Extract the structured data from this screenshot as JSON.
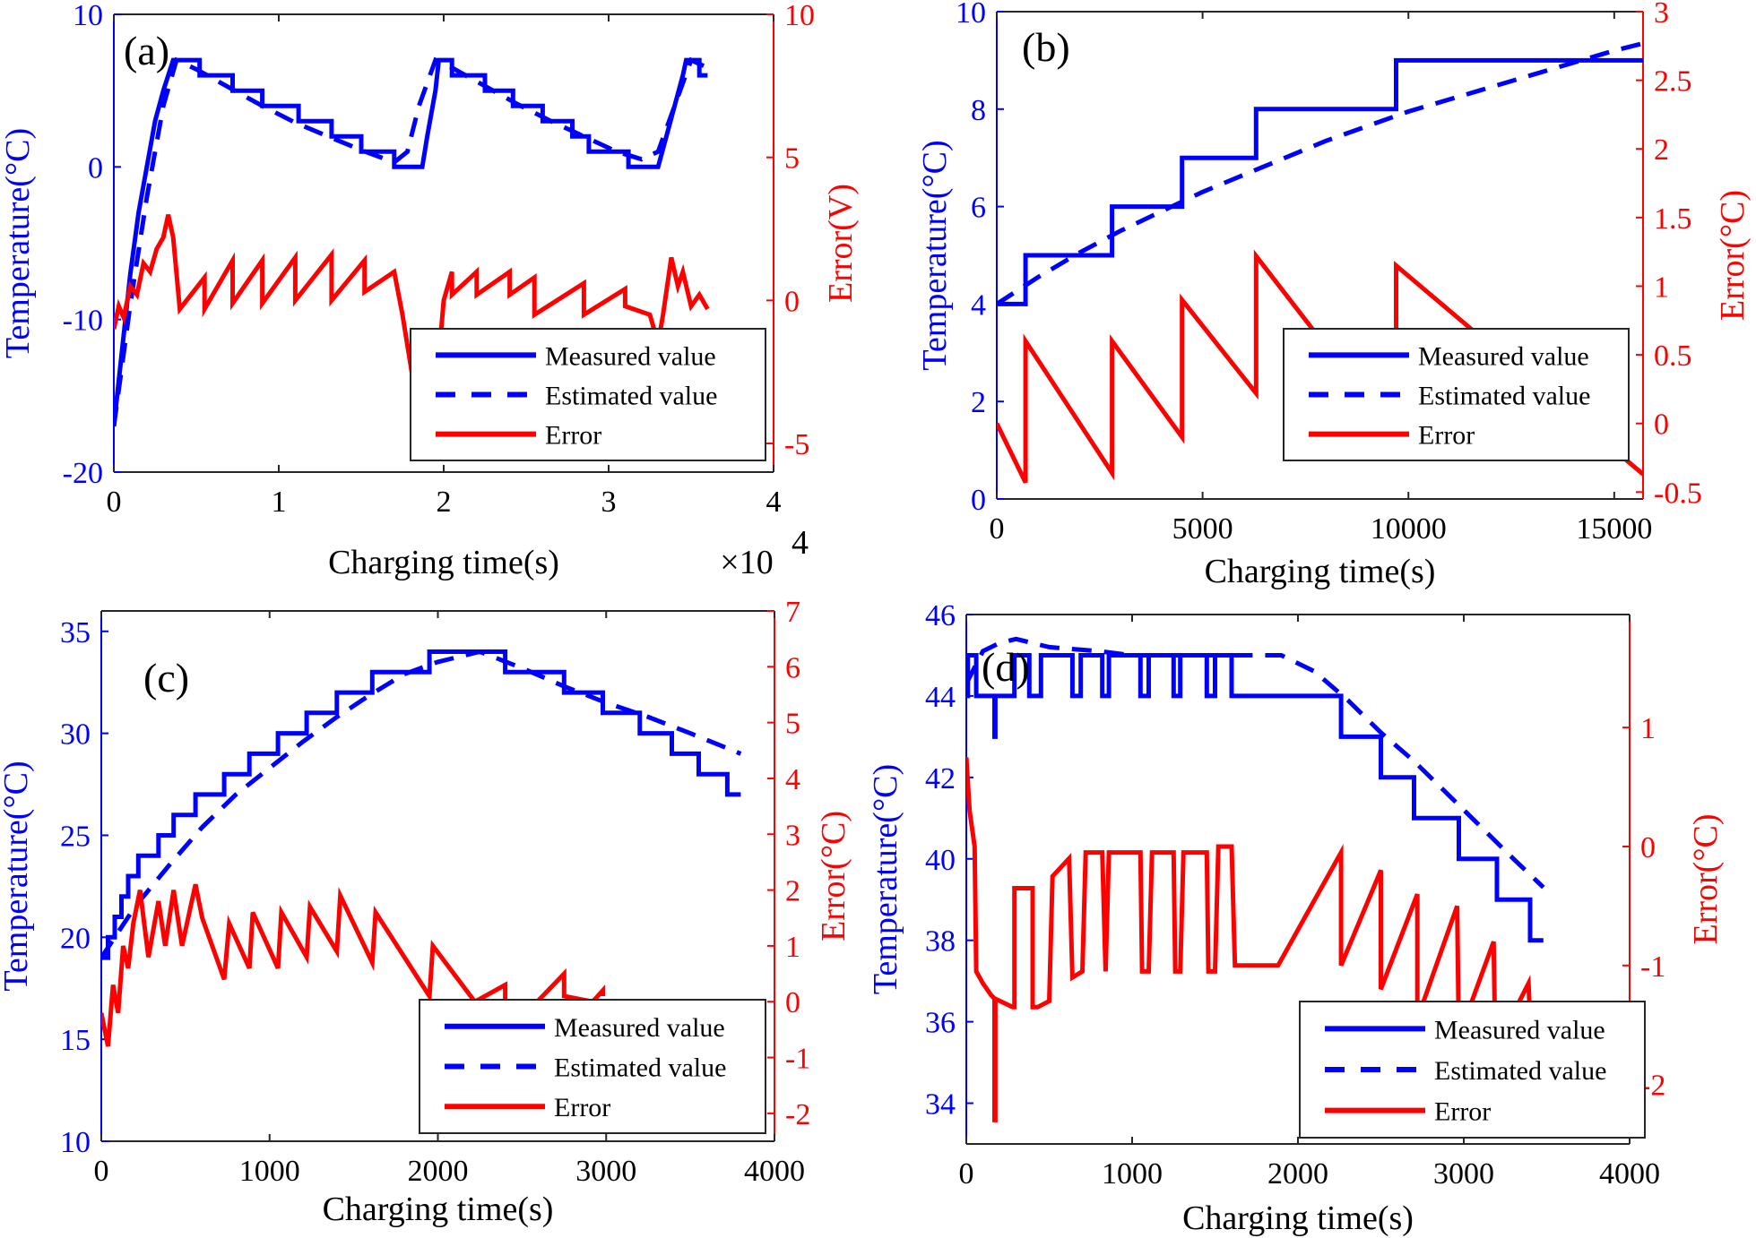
{
  "colors": {
    "measured": "#0000ff",
    "estimated": "#0000ff",
    "error": "#ff0000",
    "axis": "#262626",
    "left_axis": "#0000ff",
    "right_axis": "#ff0000"
  },
  "chart_data": [
    {
      "id": "a",
      "type": "line",
      "panel_label": "(a)",
      "xlabel": "Charging time(s)",
      "x_multiplier_label": "×10",
      "x_multiplier_exp": "4",
      "ylabel_left": "Temperature(°C)",
      "ylabel_right": "Error(V)",
      "xlim": [
        0,
        4
      ],
      "ylim_left": [
        -20,
        10
      ],
      "ylim_right": [
        -6,
        10
      ],
      "xticks": [
        0,
        1,
        2,
        3,
        4
      ],
      "yticks_left": [
        -20,
        -10,
        0,
        10
      ],
      "yticks_right": [
        -5,
        0,
        5,
        10
      ],
      "legend": [
        "Measured value",
        "Estimated value",
        "Error"
      ],
      "legend_position": "bottom-right",
      "series": [
        {
          "name": "Measured value",
          "axis": "left",
          "style": "solid",
          "x": [
            0,
            0.05,
            0.1,
            0.15,
            0.2,
            0.25,
            0.3,
            0.33,
            0.36,
            0.38,
            0.52,
            0.52,
            0.72,
            0.72,
            0.9,
            0.9,
            1.12,
            1.12,
            1.32,
            1.32,
            1.5,
            1.5,
            1.7,
            1.7,
            1.87,
            1.9,
            1.95,
            1.97,
            2.05,
            2.05,
            2.25,
            2.25,
            2.42,
            2.42,
            2.6,
            2.6,
            2.78,
            2.78,
            2.88,
            2.88,
            3.12,
            3.12,
            3.3,
            3.35,
            3.4,
            3.45,
            3.47,
            3.55,
            3.55,
            3.6
          ],
          "y": [
            -17,
            -12,
            -7,
            -3,
            0,
            3,
            5,
            6,
            7,
            7,
            7,
            6,
            6,
            5,
            5,
            4,
            4,
            3,
            3,
            2,
            2,
            1,
            1,
            0,
            0,
            2,
            5,
            7,
            7,
            6,
            6,
            5,
            5,
            4,
            4,
            3,
            3,
            2,
            2,
            1,
            1,
            0,
            0,
            2,
            4,
            6,
            7,
            7,
            6,
            6
          ]
        },
        {
          "name": "Estimated value",
          "axis": "left",
          "style": "dashed",
          "x": [
            0,
            0.1,
            0.2,
            0.3,
            0.38,
            0.5,
            0.7,
            0.9,
            1.1,
            1.3,
            1.5,
            1.7,
            1.78,
            1.85,
            1.95,
            2.05,
            2.25,
            2.45,
            2.65,
            2.85,
            3.05,
            3.2,
            3.3,
            3.4,
            3.5,
            3.6
          ],
          "y": [
            -17,
            -9,
            -2,
            4,
            7,
            6.4,
            5.2,
            4.0,
            2.9,
            2.0,
            1.1,
            0.3,
            1,
            4,
            7,
            6.5,
            5.3,
            4.1,
            3.0,
            2.0,
            1.0,
            0.5,
            1,
            4,
            7,
            6.5
          ]
        },
        {
          "name": "Error",
          "axis": "right",
          "style": "solid",
          "x": [
            0,
            0.03,
            0.06,
            0.1,
            0.14,
            0.18,
            0.22,
            0.26,
            0.3,
            0.33,
            0.36,
            0.4,
            0.55,
            0.55,
            0.72,
            0.72,
            0.9,
            0.9,
            1.1,
            1.1,
            1.32,
            1.32,
            1.52,
            1.52,
            1.7,
            1.75,
            1.82,
            1.88,
            1.92,
            1.97,
            2.0,
            2.05,
            2.05,
            2.2,
            2.2,
            2.4,
            2.4,
            2.55,
            2.55,
            2.85,
            2.85,
            3.1,
            3.1,
            3.25,
            3.3,
            3.33,
            3.38,
            3.42,
            3.45,
            3.5,
            3.55,
            3.6
          ],
          "y": [
            -1,
            -0.2,
            -0.6,
            0.5,
            0.2,
            1.3,
            1.0,
            1.8,
            2.2,
            3,
            2.2,
            -0.3,
            0.8,
            -0.3,
            1.4,
            -0.1,
            1.4,
            -0.1,
            1.5,
            0,
            1.6,
            0,
            1.4,
            0.3,
            1.0,
            -0.5,
            -3,
            -5.5,
            -3.5,
            -2,
            0,
            1.0,
            0.2,
            1.0,
            0.2,
            1.0,
            0.2,
            0.8,
            -0.5,
            0.6,
            -0.5,
            0.4,
            -0.2,
            -0.5,
            -1.5,
            -0.5,
            1.5,
            0.5,
            1,
            -0.2,
            0.2,
            -0.3
          ]
        }
      ]
    },
    {
      "id": "b",
      "type": "line",
      "panel_label": "(b)",
      "xlabel": "Charging time(s)",
      "ylabel_left": "Temperature(°C)",
      "ylabel_right": "Error(°C)",
      "xlim": [
        0,
        15700
      ],
      "ylim_left": [
        0,
        10
      ],
      "ylim_right": [
        -0.55,
        3
      ],
      "xticks": [
        0,
        5000,
        10000,
        15000
      ],
      "yticks_left": [
        0,
        2,
        4,
        6,
        8,
        10
      ],
      "yticks_right": [
        -0.5,
        0,
        0.5,
        1,
        1.5,
        2,
        2.5,
        3
      ],
      "legend": [
        "Measured value",
        "Estimated value",
        "Error"
      ],
      "legend_position": "bottom-right",
      "series": [
        {
          "name": "Measured value",
          "axis": "left",
          "style": "solid",
          "x": [
            0,
            700,
            700,
            2800,
            2800,
            4500,
            4500,
            6300,
            6300,
            9700,
            9700,
            15700
          ],
          "y": [
            4,
            4,
            5,
            5,
            6,
            6,
            7,
            7,
            8,
            8,
            9,
            9
          ]
        },
        {
          "name": "Estimated value",
          "axis": "left",
          "style": "dashed",
          "x": [
            0,
            1000,
            2000,
            3000,
            4000,
            5000,
            6000,
            7000,
            8000,
            9000,
            10000,
            11000,
            12000,
            13000,
            14000,
            15000,
            15700
          ],
          "y": [
            4.0,
            4.55,
            5.05,
            5.5,
            5.9,
            6.3,
            6.65,
            7.0,
            7.35,
            7.65,
            7.95,
            8.2,
            8.45,
            8.7,
            8.95,
            9.2,
            9.35
          ]
        },
        {
          "name": "Error",
          "axis": "right",
          "style": "solid",
          "x": [
            0,
            700,
            700,
            2800,
            2800,
            4500,
            4500,
            6300,
            6300,
            9700,
            9700,
            15700
          ],
          "y": [
            0,
            -0.43,
            0.6,
            -0.36,
            0.6,
            -0.1,
            0.9,
            0.22,
            1.22,
            -0.1,
            1.15,
            -0.37
          ]
        }
      ]
    },
    {
      "id": "c",
      "type": "line",
      "panel_label": "(c)",
      "xlabel": "Charging time(s)",
      "ylabel_left": "Temperature(°C)",
      "ylabel_right": "Error(°C)",
      "xlim": [
        0,
        4000
      ],
      "ylim_left": [
        10,
        36
      ],
      "ylim_right": [
        -2.5,
        7
      ],
      "xticks": [
        0,
        1000,
        2000,
        3000,
        4000
      ],
      "yticks_left": [
        10,
        15,
        20,
        25,
        30,
        35
      ],
      "yticks_right": [
        -2,
        -1,
        0,
        1,
        2,
        3,
        4,
        5,
        6,
        7
      ],
      "legend": [
        "Measured value",
        "Estimated value",
        "Error"
      ],
      "legend_position": "bottom-right",
      "series": [
        {
          "name": "Measured value",
          "axis": "left",
          "style": "solid",
          "x": [
            0,
            40,
            40,
            80,
            80,
            120,
            120,
            160,
            160,
            220,
            220,
            340,
            340,
            430,
            430,
            560,
            560,
            730,
            730,
            880,
            880,
            1050,
            1050,
            1220,
            1220,
            1400,
            1400,
            1610,
            1610,
            1950,
            1950,
            2400,
            2400,
            2750,
            2750,
            2980,
            2980,
            3200,
            3200,
            3390,
            3390,
            3550,
            3550,
            3720,
            3720,
            3800
          ],
          "y": [
            19,
            19,
            20,
            20,
            21,
            21,
            22,
            22,
            23,
            23,
            24,
            24,
            25,
            25,
            26,
            26,
            27,
            27,
            28,
            28,
            29,
            29,
            30,
            30,
            31,
            31,
            32,
            32,
            33,
            33,
            34,
            34,
            33,
            33,
            32,
            32,
            31,
            31,
            30,
            30,
            29,
            29,
            28,
            28,
            27,
            27
          ]
        },
        {
          "name": "Estimated value",
          "axis": "left",
          "style": "dashed",
          "x": [
            0,
            200,
            400,
            600,
            800,
            1000,
            1200,
            1400,
            1600,
            1800,
            2000,
            2250,
            2500,
            2750,
            3000,
            3250,
            3500,
            3800
          ],
          "y": [
            19,
            21.5,
            23.5,
            25.4,
            27,
            28.3,
            29.6,
            30.8,
            31.9,
            32.9,
            33.5,
            34,
            33.2,
            32.3,
            31.5,
            30.8,
            30,
            29
          ]
        },
        {
          "name": "Error",
          "axis": "right",
          "style": "solid",
          "x": [
            0,
            40,
            70,
            100,
            130,
            160,
            190,
            230,
            280,
            340,
            380,
            430,
            480,
            560,
            600,
            730,
            760,
            880,
            900,
            1050,
            1070,
            1220,
            1240,
            1400,
            1420,
            1610,
            1630,
            1950,
            1970,
            2220,
            2400,
            2400,
            2590,
            2750,
            2750,
            2920,
            2980,
            2980
          ],
          "y": [
            -0.2,
            -0.8,
            0.3,
            -0.2,
            1.0,
            0.6,
            1.4,
            2.0,
            0.8,
            1.8,
            1.0,
            2.0,
            1.0,
            2.1,
            1.5,
            0.4,
            1.4,
            0.6,
            1.6,
            0.6,
            1.6,
            0.8,
            1.7,
            0.9,
            1.9,
            0.7,
            1.6,
            0.1,
            1.0,
            0,
            0.3,
            0,
            0,
            0.5,
            0.1,
            0,
            0.2,
            0.1
          ]
        }
      ]
    },
    {
      "id": "d",
      "type": "line",
      "panel_label": "(d)",
      "xlabel": "Charging time(s)",
      "ylabel_left": "Temperature(°C)",
      "ylabel_right": "Error(°C)",
      "xlim": [
        0,
        4000
      ],
      "ylim_left": [
        33,
        46
      ],
      "ylim_right": [
        -2.5,
        1.95
      ],
      "xticks": [
        0,
        1000,
        2000,
        3000,
        4000
      ],
      "yticks_left": [
        34,
        36,
        38,
        40,
        42,
        44,
        46
      ],
      "yticks_right": [
        -2,
        -1,
        0,
        1
      ],
      "legend": [
        "Measured value",
        "Estimated value",
        "Error"
      ],
      "legend_position": "bottom-right",
      "series": [
        {
          "name": "Measured value",
          "axis": "left",
          "style": "solid",
          "x": [
            0,
            10,
            10,
            60,
            60,
            170,
            170,
            175,
            175,
            290,
            290,
            380,
            380,
            450,
            450,
            640,
            640,
            690,
            690,
            820,
            820,
            860,
            860,
            1050,
            1050,
            1100,
            1100,
            1250,
            1250,
            1290,
            1290,
            1450,
            1450,
            1500,
            1500,
            1600,
            1600,
            2260,
            2260,
            2500,
            2500,
            2700,
            2700,
            2970,
            2970,
            3200,
            3200,
            3400,
            3400,
            3480
          ],
          "y": [
            44,
            44,
            45,
            45,
            44,
            44,
            43,
            43,
            44,
            44,
            45,
            45,
            44,
            44,
            45,
            45,
            44,
            44,
            45,
            45,
            44,
            44,
            45,
            45,
            44,
            44,
            45,
            45,
            44,
            44,
            45,
            45,
            44,
            44,
            45,
            45,
            44,
            44,
            43,
            43,
            42,
            42,
            41,
            41,
            40,
            40,
            39,
            39,
            38,
            38
          ]
        },
        {
          "name": "Estimated value",
          "axis": "left",
          "style": "dashed",
          "x": [
            0,
            100,
            200,
            300,
            500,
            800,
            1000,
            1500,
            1900,
            2100,
            2300,
            2500,
            2700,
            2900,
            3100,
            3300,
            3480
          ],
          "y": [
            44.3,
            45.1,
            45.3,
            45.4,
            45.2,
            45.1,
            45.0,
            45.0,
            45.0,
            44.6,
            43.9,
            43.1,
            42.4,
            41.6,
            40.8,
            40.0,
            39.3
          ]
        },
        {
          "name": "Error",
          "axis": "right",
          "style": "solid",
          "x": [
            0,
            20,
            50,
            60,
            100,
            150,
            170,
            170,
            175,
            175,
            280,
            290,
            290,
            400,
            400,
            430,
            500,
            520,
            620,
            640,
            700,
            720,
            820,
            840,
            860,
            900,
            1050,
            1060,
            1100,
            1120,
            1250,
            1260,
            1290,
            1310,
            1450,
            1460,
            1500,
            1520,
            1600,
            1620,
            1880,
            2260,
            2260,
            2500,
            2500,
            2720,
            2720,
            2960,
            2970,
            3180,
            3190,
            3390,
            3400
          ],
          "y": [
            0.75,
            0.3,
            0,
            -1.05,
            -1.15,
            -1.25,
            -1.28,
            -2.3,
            -2.3,
            -1.28,
            -1.35,
            -1.35,
            -0.35,
            -0.35,
            -1.35,
            -1.35,
            -1.3,
            -0.25,
            -0.1,
            -1.1,
            -1.05,
            -0.05,
            -0.05,
            -1.05,
            -0.05,
            -0.05,
            -0.05,
            -1.05,
            -1.05,
            -0.05,
            -0.05,
            -1.05,
            -1.05,
            -0.05,
            -0.05,
            -1.05,
            -1.05,
            0,
            0,
            -1.0,
            -1.0,
            -0.05,
            -1.0,
            -0.2,
            -1.2,
            -0.4,
            -1.45,
            -0.5,
            -1.6,
            -0.8,
            -1.7,
            -1.15,
            -1.45
          ]
        }
      ]
    }
  ]
}
